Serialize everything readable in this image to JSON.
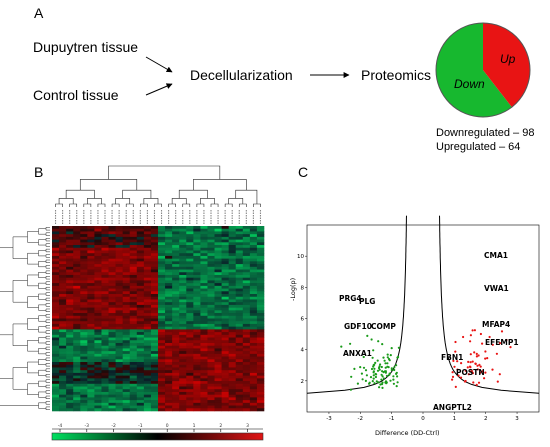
{
  "panels": {
    "a": "A",
    "b": "B",
    "c": "C"
  },
  "workflow": {
    "dupuytren": "Dupuytren tissue",
    "control": "Control tissue",
    "decell": "Decellularization",
    "proteomics": "Proteomics"
  },
  "pie": {
    "up_label": "Up",
    "down_label": "Down",
    "up_color": "#e81414",
    "down_color": "#17b82f",
    "up_fraction": 0.395,
    "down_fraction": 0.605
  },
  "stats": {
    "down": "Downregulated – 98",
    "up": "Upregulated – 64"
  },
  "heatmap": {
    "colorbar_ticks": [
      "-4",
      "-3",
      "-2",
      "-1",
      "0",
      "1",
      "2",
      "3"
    ],
    "colors": {
      "low": "#00d45a",
      "mid": "#000000",
      "high": "#d41414"
    }
  },
  "volcano": {
    "xlabel": "Difference (DD-Ctrl)",
    "ylabel": "-Log(p)",
    "x_ticks": [
      "-3",
      "-2",
      "-1",
      "0",
      "1",
      "2",
      "3"
    ],
    "y_ticks": [
      "2",
      "4",
      "6",
      "8",
      "10"
    ],
    "labels": {
      "prg4": "PRG4",
      "plg": "PLG",
      "gdf10": "GDF10",
      "comp": "COMP",
      "anxa1": "ANXA1",
      "cma1": "CMA1",
      "vwa1": "VWA1",
      "mfap4": "MFAP4",
      "efemp1": "EFEMP1",
      "fbn1": "FBN1",
      "postn": "POSTN",
      "angptl2": "ANGPTL2"
    },
    "colors": {
      "up": "#e81414",
      "down": "#1a9b1a"
    }
  }
}
